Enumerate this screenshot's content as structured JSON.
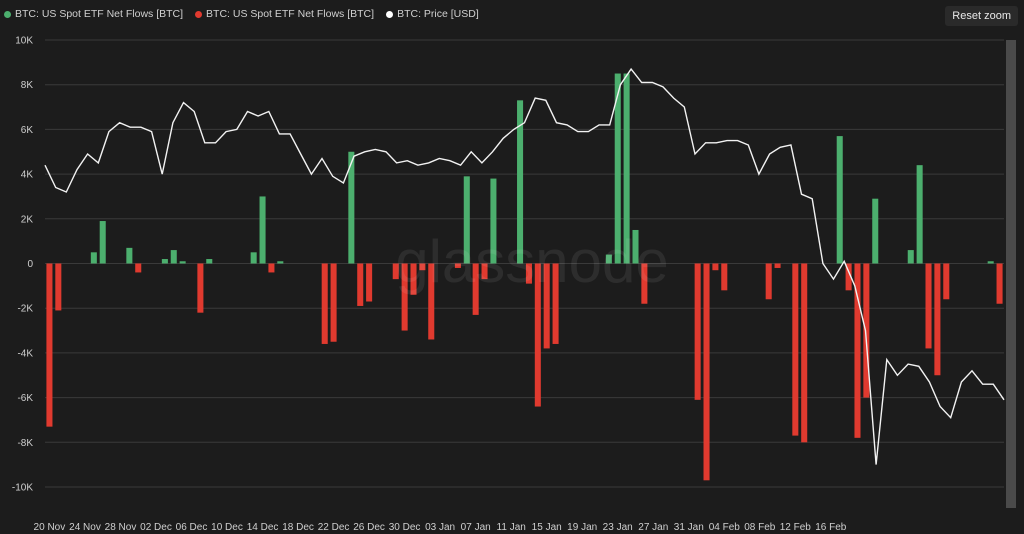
{
  "legend": [
    {
      "label": "BTC: US Spot ETF Net Flows [BTC]",
      "color": "#4caf6e"
    },
    {
      "label": "BTC: US Spot ETF Net Flows [BTC]",
      "color": "#e03a2f"
    },
    {
      "label": "BTC: Price [USD]",
      "color": "#ffffff"
    }
  ],
  "reset_zoom_label": "Reset zoom",
  "watermark": "glassnode",
  "colors": {
    "positive": "#4caf6e",
    "negative": "#e03a2f",
    "price_line": "#f2f2f2",
    "grid": "#3a3a3a",
    "background": "#1c1c1c"
  },
  "chart_data": {
    "type": "bar",
    "y_ticks": [
      "10K",
      "8K",
      "6K",
      "4K",
      "2K",
      "0",
      "-2K",
      "-4K",
      "-6K",
      "-8K",
      "-10K"
    ],
    "ylim": [
      -10000,
      10000
    ],
    "grid": true,
    "legend_position": "top-left",
    "x_tick_labels": [
      "20 Nov",
      "24 Nov",
      "28 Nov",
      "02 Dec",
      "06 Dec",
      "10 Dec",
      "14 Dec",
      "18 Dec",
      "22 Dec",
      "26 Dec",
      "30 Dec",
      "03 Jan",
      "07 Jan",
      "11 Jan",
      "15 Jan",
      "19 Jan",
      "23 Jan",
      "27 Jan",
      "31 Jan",
      "04 Feb",
      "08 Feb",
      "12 Feb",
      "16 Feb"
    ],
    "x_start": "2025-11-20",
    "net_flows": [
      -7300,
      -2100,
      0,
      0,
      0,
      500,
      1900,
      0,
      0,
      700,
      -400,
      0,
      0,
      200,
      600,
      100,
      0,
      -2200,
      200,
      0,
      0,
      0,
      0,
      500,
      3000,
      -400,
      100,
      0,
      0,
      0,
      0,
      -3600,
      -3500,
      0,
      5000,
      -1900,
      -1700,
      0,
      0,
      -700,
      -3000,
      -1400,
      -300,
      -3400,
      0,
      0,
      -200,
      3900,
      -2300,
      -700,
      3800,
      0,
      0,
      7300,
      -900,
      -6400,
      -3800,
      -3600,
      0,
      0,
      0,
      0,
      0,
      400,
      8500,
      8500,
      1500,
      -1800,
      0,
      0,
      0,
      0,
      0,
      -6100,
      -9700,
      -300,
      -1200,
      0,
      0,
      0,
      0,
      -1600,
      -200,
      0,
      -7700,
      -8000,
      0,
      0,
      0,
      5700,
      -1200,
      -7800,
      -6000,
      2900,
      0,
      0,
      0,
      600,
      4400,
      -3800,
      -5000,
      -1600,
      0,
      0,
      0,
      0,
      100,
      -1800
    ],
    "price_line": [
      4400,
      3400,
      3200,
      4200,
      4900,
      4500,
      5900,
      6300,
      6100,
      6100,
      5900,
      4000,
      6300,
      7200,
      6800,
      5400,
      5400,
      5900,
      6000,
      6800,
      6600,
      6800,
      5800,
      5800,
      4900,
      4000,
      4700,
      3900,
      3600,
      4800,
      5000,
      5100,
      5000,
      4500,
      4600,
      4400,
      4500,
      4700,
      4600,
      4400,
      5000,
      4500,
      5000,
      5600,
      6000,
      6300,
      7400,
      7300,
      6300,
      6200,
      5900,
      5900,
      6200,
      6200,
      8000,
      8700,
      8100,
      8100,
      7900,
      7400,
      7000,
      4900,
      5400,
      5400,
      5500,
      5500,
      5300,
      4000,
      4900,
      5200,
      5300,
      3100,
      2900,
      0,
      -700,
      100,
      -1000,
      -3000,
      -9000,
      -4300,
      -5000,
      -4500,
      -4600,
      -5300,
      -6400,
      -6900,
      -5300,
      -4800,
      -5400,
      -5400,
      -6100
    ]
  }
}
